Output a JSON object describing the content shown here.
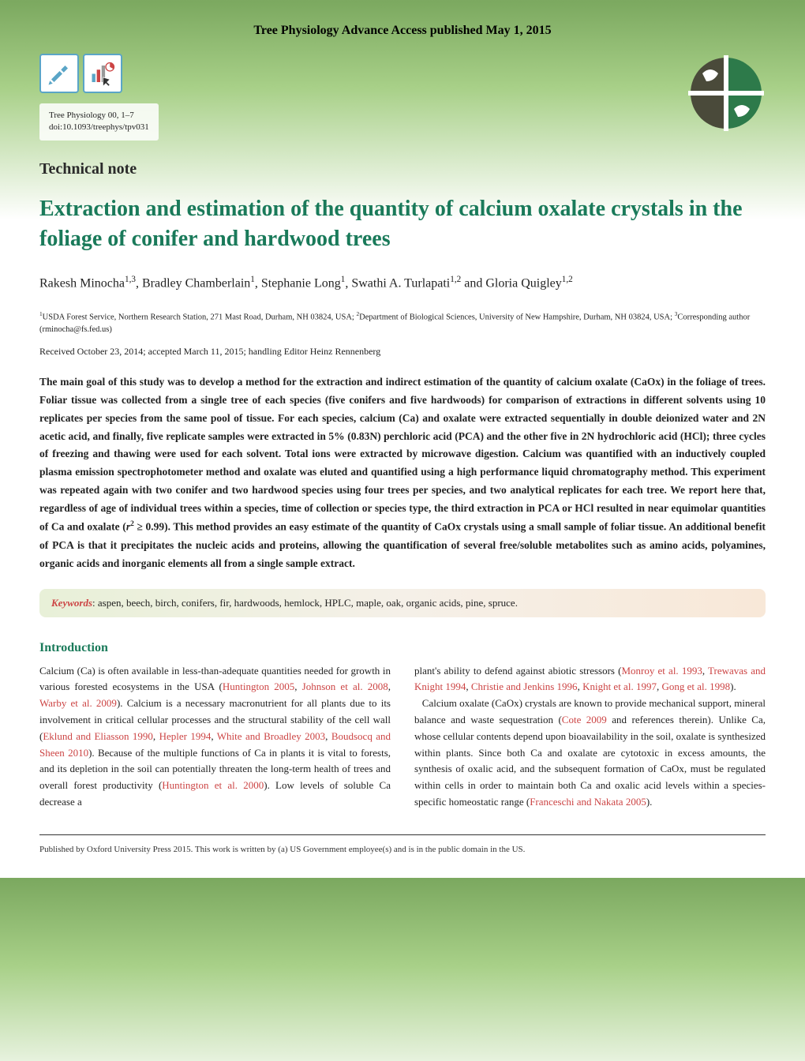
{
  "header_banner": "Tree Physiology Advance Access published May 1, 2015",
  "journal": {
    "name": "Tree Physiology 00, 1–7",
    "doi": "doi:10.1093/treephys/tpv031"
  },
  "section_label": "Technical note",
  "title": "Extraction and estimation of the quantity of calcium oxalate crystals in the foliage of conifer and hardwood trees",
  "authors_html": "Rakesh Minocha<sup>1,3</sup>, Bradley Chamberlain<sup>1</sup>, Stephanie Long<sup>1</sup>, Swathi A. Turlapati<sup>1,2</sup> and Gloria Quigley<sup>1,2</sup>",
  "affiliations_html": "<sup>1</sup>USDA Forest Service, Northern Research Station, 271 Mast Road, Durham, NH 03824, USA; <sup>2</sup>Department of Biological Sciences, University of New Hampshire, Durham, NH 03824, USA; <sup>3</sup>Corresponding author (rminocha@fs.fed.us)",
  "received": "Received October 23, 2014; accepted March 11, 2015; handling Editor Heinz Rennenberg",
  "abstract_html": "The main goal of this study was to develop a method for the extraction and indirect estimation of the quantity of calcium oxalate (CaOx) in the foliage of trees. Foliar tissue was collected from a single tree of each species (five conifers and five hardwoods) for comparison of extractions in different solvents using 10 replicates per species from the same pool of tissue. For each species, calcium (Ca) and oxalate were extracted sequentially in double deionized water and 2N acetic acid, and finally, five replicate samples were extracted in 5% (0.83N) perchloric acid (PCA) and the other five in 2N hydrochloric acid (HCl); three cycles of freezing and thawing were used for each solvent. Total ions were extracted by microwave digestion. Calcium was quantified with an inductively coupled plasma emission spectrophotometer method and oxalate was eluted and quantified using a high performance liquid chromatography method. This experiment was repeated again with two conifer and two hardwood species using four trees per species, and two analytical replicates for each tree. We report here that, regardless of age of individual trees within a species, time of collection or species type, the third extraction in PCA or HCl resulted in near equimolar quantities of Ca and oxalate (<i>r</i><sup>2</sup> ≥ 0.99). This method provides an easy estimate of the quantity of CaOx crystals using a small sample of foliar tissue. An additional benefit of PCA is that it precipitates the nucleic acids and proteins, allowing the quantification of several free/soluble metabolites such as amino acids, polyamines, organic acids and inorganic elements all from a single sample extract.",
  "keywords_label": "Keywords",
  "keywords": ": aspen, beech, birch, conifers, fir, hardwoods, hemlock, HPLC, maple, oak, organic acids, pine, spruce.",
  "intro_heading": "Introduction",
  "col1_html": "Calcium (Ca) is often available in less-than-adequate quantities needed for growth in various forested ecosystems in the USA (<span class='citation'>Huntington 2005</span>, <span class='citation'>Johnson et al. 2008</span>, <span class='citation'>Warby et al. 2009</span>). Calcium is a necessary macronutrient for all plants due to its involvement in critical cellular processes and the structural stability of the cell wall (<span class='citation'>Eklund and Eliasson 1990</span>, <span class='citation'>Hepler 1994</span>, <span class='citation'>White and Broadley 2003</span>, <span class='citation'>Boudsocq and Sheen 2010</span>). Because of the multiple functions of Ca in plants it is vital to forests, and its depletion in the soil can potentially threaten the long-term health of trees and overall forest productivity (<span class='citation'>Huntington et al. 2000</span>). Low levels of soluble Ca decrease a",
  "col2_html": "plant's ability to defend against abiotic stressors (<span class='citation'>Monroy et al. 1993</span>, <span class='citation'>Trewavas and Knight 1994</span>, <span class='citation'>Christie and Jenkins 1996</span>, <span class='citation'>Knight et al. 1997</span>, <span class='citation'>Gong et al. 1998</span>).<br>&nbsp;&nbsp;&nbsp;Calcium oxalate (CaOx) crystals are known to provide mechanical support, mineral balance and waste sequestration (<span class='citation'>Cote 2009</span> and references therein). Unlike Ca, whose cellular contents depend upon bioavailability in the soil, oxalate is synthesized within plants. Since both Ca and oxalate are cytotoxic in excess amounts, the synthesis of oxalic acid, and the subsequent formation of CaOx, must be regulated within cells in order to maintain both Ca and oxalic acid levels within a species-specific homeostatic range (<span class='citation'>Franceschi and Nakata 2005</span>).",
  "footer": "Published by Oxford University Press 2015. This work is written by (a) US Government employee(s) and is in the public domain in the US.",
  "colors": {
    "title_green": "#1a7a5a",
    "citation_red": "#c44",
    "icon_blue": "#5aa5c7",
    "logo_green": "#2d7a4a",
    "logo_dark": "#4a4a3a"
  }
}
